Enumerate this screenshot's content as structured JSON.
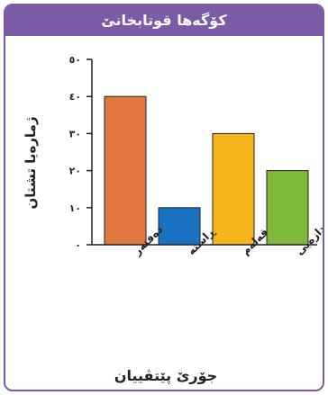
{
  "header": {
    "title": "كۆگەها قوتابخانێ"
  },
  "chart_data": {
    "type": "bar",
    "categories": [
      "دەفتەر",
      "ڕاستە",
      "قەلەم",
      "ئامیرێن ئەندازەیی"
    ],
    "values": [
      40,
      10,
      30,
      20
    ],
    "colors": [
      "#e0783f",
      "#1a73c2",
      "#f6b51c",
      "#7fb93a"
    ],
    "ylabel": "ژمارەیا تشتان",
    "xlabel": "جۆرێ پێتڤییان",
    "ylim": [
      0,
      50
    ],
    "yticks": [
      0,
      10,
      20,
      30,
      40,
      50
    ],
    "ytick_labels": [
      "٠",
      "١٠",
      "٢٠",
      "٣٠",
      "٤٠",
      "٥٠"
    ],
    "grid": false
  }
}
